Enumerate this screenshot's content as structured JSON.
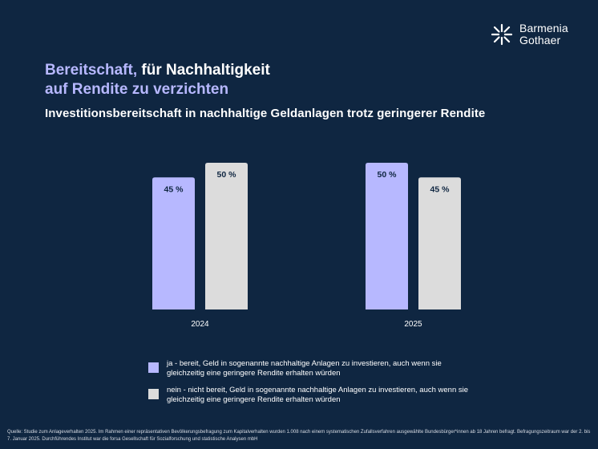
{
  "brand": {
    "line1": "Barmenia",
    "line2": "Gothaer",
    "icon": "starburst-logo-icon"
  },
  "title": {
    "accent": "Bereitschaft,",
    "rest1": " für Nachhaltigkeit",
    "line2": "auf Rendite zu verzichten"
  },
  "subtitle": "Investitionsbereitschaft in nachhaltige Geldanlagen trotz geringerer Rendite",
  "colors": {
    "background": "#0f2641",
    "accent": "#b7b8ff",
    "series_ja": "#b7b8ff",
    "series_nein": "#dcdcdc"
  },
  "chart_data": {
    "type": "bar",
    "categories": [
      "2024",
      "2025"
    ],
    "series": [
      {
        "name": "ja - bereit, Geld in sogenannte nachhaltige Anlagen zu investieren, auch wenn sie gleichzeitig eine geringere Rendite erhalten würden",
        "values": [
          45,
          50
        ],
        "labels": [
          "45 %",
          "50 %"
        ],
        "color": "#b7b8ff"
      },
      {
        "name": "nein - nicht bereit, Geld in sogenannte nachhaltige Anlagen zu investieren, auch wenn sie gleichzeitig eine geringere Rendite erhalten würden",
        "values": [
          50,
          45
        ],
        "labels": [
          "50 %",
          "45 %"
        ],
        "color": "#dcdcdc"
      }
    ],
    "ylim": [
      0,
      50
    ],
    "grid": false,
    "legend": "bottom",
    "xlabel": "",
    "ylabel": ""
  },
  "source": "Quelle: Studie zum Anlageverhalten 2025. Im Rahmen einer repräsentativen Bevölkerungsbefragung zum Kapitalverhalten wurden 1.008 nach einem systematischen Zufallsverfahren ausgewählte Bundesbürger*innen ab 18 Jahren befragt. Befragungszeitraum war der 2. bis 7. Januar 2025. Durchführendes Institut war die forsa Gesellschaft für Sozialforschung und statistische Analysen mbH"
}
